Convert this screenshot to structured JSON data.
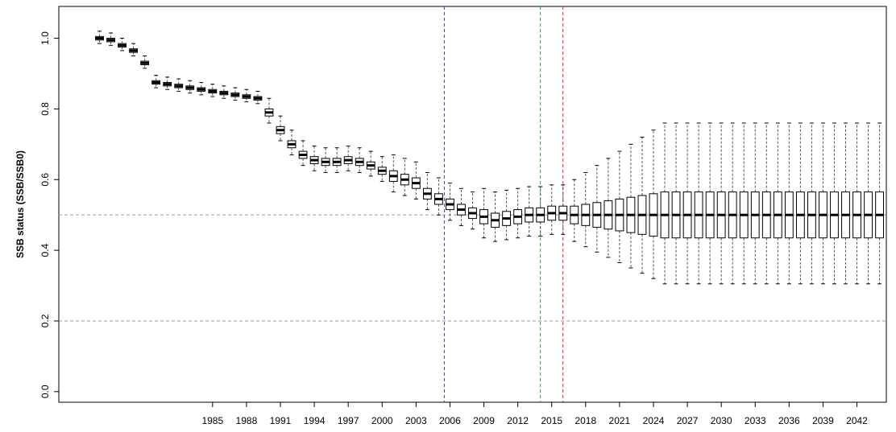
{
  "chart_data": {
    "type": "boxplot",
    "y_label": "SSB status (SSB/SSB0)",
    "x": [
      1975,
      1976,
      1977,
      1978,
      1979,
      1980,
      1981,
      1982,
      1983,
      1984,
      1985,
      1986,
      1987,
      1988,
      1989,
      1990,
      1991,
      1992,
      1993,
      1994,
      1995,
      1996,
      1997,
      1998,
      1999,
      2000,
      2001,
      2002,
      2003,
      2004,
      2005,
      2006,
      2007,
      2008,
      2009,
      2010,
      2011,
      2012,
      2013,
      2014,
      2015,
      2016,
      2017,
      2018,
      2019,
      2020,
      2021,
      2022,
      2023,
      2024,
      2025,
      2026,
      2027,
      2028,
      2029,
      2030,
      2031,
      2032,
      2033,
      2034,
      2035,
      2036,
      2037,
      2038,
      2039,
      2040,
      2041,
      2042,
      2043,
      2044
    ],
    "lo": [
      0.985,
      0.98,
      0.965,
      0.95,
      0.915,
      0.86,
      0.855,
      0.85,
      0.845,
      0.84,
      0.835,
      0.83,
      0.825,
      0.82,
      0.815,
      0.76,
      0.71,
      0.67,
      0.64,
      0.625,
      0.62,
      0.62,
      0.625,
      0.62,
      0.61,
      0.595,
      0.565,
      0.555,
      0.545,
      0.515,
      0.5,
      0.485,
      0.47,
      0.46,
      0.435,
      0.425,
      0.43,
      0.435,
      0.44,
      0.44,
      0.445,
      0.445,
      0.425,
      0.41,
      0.395,
      0.38,
      0.365,
      0.35,
      0.335,
      0.32,
      0.305,
      0.305,
      0.305,
      0.305,
      0.305,
      0.305,
      0.305,
      0.305,
      0.305,
      0.305,
      0.305,
      0.305,
      0.305,
      0.305,
      0.305,
      0.305,
      0.305,
      0.305,
      0.305,
      0.305
    ],
    "q1": [
      0.995,
      0.99,
      0.975,
      0.96,
      0.925,
      0.87,
      0.865,
      0.86,
      0.855,
      0.85,
      0.845,
      0.84,
      0.835,
      0.83,
      0.825,
      0.78,
      0.73,
      0.69,
      0.66,
      0.645,
      0.64,
      0.64,
      0.645,
      0.64,
      0.63,
      0.615,
      0.595,
      0.585,
      0.575,
      0.545,
      0.53,
      0.515,
      0.5,
      0.49,
      0.475,
      0.465,
      0.47,
      0.475,
      0.48,
      0.48,
      0.485,
      0.485,
      0.475,
      0.47,
      0.465,
      0.46,
      0.455,
      0.45,
      0.445,
      0.44,
      0.435,
      0.435,
      0.435,
      0.435,
      0.435,
      0.435,
      0.435,
      0.435,
      0.435,
      0.435,
      0.435,
      0.435,
      0.435,
      0.435,
      0.435,
      0.435,
      0.435,
      0.435,
      0.435,
      0.435
    ],
    "median": [
      1,
      0.995,
      0.98,
      0.965,
      0.93,
      0.875,
      0.87,
      0.865,
      0.86,
      0.855,
      0.85,
      0.845,
      0.84,
      0.835,
      0.83,
      0.79,
      0.74,
      0.7,
      0.67,
      0.655,
      0.65,
      0.65,
      0.655,
      0.65,
      0.64,
      0.625,
      0.61,
      0.6,
      0.59,
      0.56,
      0.545,
      0.53,
      0.515,
      0.505,
      0.495,
      0.485,
      0.49,
      0.495,
      0.5,
      0.5,
      0.505,
      0.505,
      0.5,
      0.5,
      0.5,
      0.5,
      0.5,
      0.5,
      0.5,
      0.5,
      0.5,
      0.5,
      0.5,
      0.5,
      0.5,
      0.5,
      0.5,
      0.5,
      0.5,
      0.5,
      0.5,
      0.5,
      0.5,
      0.5,
      0.5,
      0.5,
      0.5,
      0.5,
      0.5,
      0.5
    ],
    "q3": [
      1.005,
      1,
      0.985,
      0.97,
      0.935,
      0.88,
      0.875,
      0.87,
      0.865,
      0.86,
      0.855,
      0.85,
      0.845,
      0.84,
      0.835,
      0.8,
      0.75,
      0.71,
      0.68,
      0.665,
      0.66,
      0.66,
      0.665,
      0.66,
      0.65,
      0.635,
      0.625,
      0.615,
      0.605,
      0.575,
      0.56,
      0.545,
      0.53,
      0.52,
      0.515,
      0.505,
      0.51,
      0.515,
      0.52,
      0.52,
      0.525,
      0.525,
      0.525,
      0.53,
      0.535,
      0.54,
      0.545,
      0.55,
      0.555,
      0.56,
      0.565,
      0.565,
      0.565,
      0.565,
      0.565,
      0.565,
      0.565,
      0.565,
      0.565,
      0.565,
      0.565,
      0.565,
      0.565,
      0.565,
      0.565,
      0.565,
      0.565,
      0.565,
      0.565,
      0.565
    ],
    "hi": [
      1.02,
      1.015,
      1,
      0.985,
      0.95,
      0.895,
      0.89,
      0.885,
      0.88,
      0.875,
      0.87,
      0.865,
      0.86,
      0.855,
      0.85,
      0.83,
      0.78,
      0.74,
      0.71,
      0.695,
      0.69,
      0.69,
      0.695,
      0.69,
      0.68,
      0.665,
      0.67,
      0.66,
      0.65,
      0.62,
      0.605,
      0.59,
      0.575,
      0.565,
      0.575,
      0.565,
      0.57,
      0.575,
      0.58,
      0.58,
      0.585,
      0.585,
      0.6,
      0.62,
      0.64,
      0.66,
      0.68,
      0.7,
      0.72,
      0.74,
      0.76,
      0.76,
      0.76,
      0.76,
      0.76,
      0.76,
      0.76,
      0.76,
      0.76,
      0.76,
      0.76,
      0.76,
      0.76,
      0.76,
      0.76,
      0.76,
      0.76,
      0.76,
      0.76,
      0.76
    ],
    "color": "#000000",
    "xlim": [
      1971.4,
      2044.6
    ],
    "xticks": [
      1985,
      1988,
      1991,
      1994,
      1997,
      2000,
      2003,
      2006,
      2009,
      2012,
      2015,
      2018,
      2021,
      2024,
      2027,
      2030,
      2033,
      2036,
      2039,
      2042
    ],
    "ylim": [
      -0.03,
      1.09
    ],
    "yticks": [
      {
        "value": 0,
        "label": "0.0"
      },
      {
        "value": 0.2,
        "label": "0.2"
      },
      {
        "value": 0.4,
        "label": "0.4"
      },
      {
        "value": 0.6,
        "label": "0.6"
      },
      {
        "value": 0.8,
        "label": "0.8"
      },
      {
        "value": 1,
        "label": "1.0"
      }
    ],
    "hlines": [
      {
        "value": 0.5,
        "color": "#999999"
      },
      {
        "value": 0.2,
        "color": "#999999"
      }
    ],
    "vlines": [
      {
        "value": 2005.5,
        "color": "#3344cc"
      },
      {
        "value": 2014,
        "color": "#22aa44"
      },
      {
        "value": 2016,
        "color": "#dd2222"
      }
    ]
  }
}
